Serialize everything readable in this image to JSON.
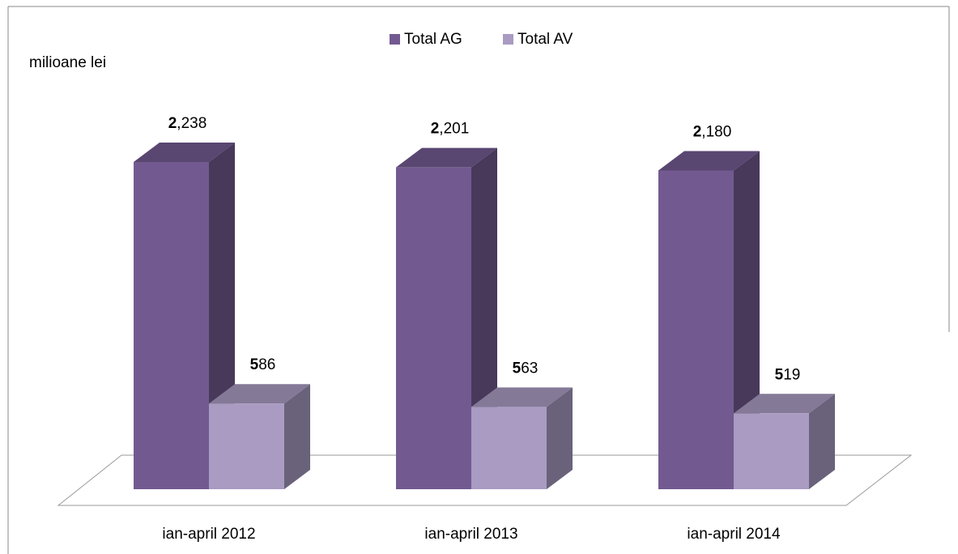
{
  "chart_data": {
    "type": "bar3d",
    "y_label": "milioane lei",
    "categories": [
      "ian-april 2012",
      "ian-april 2013",
      "ian-april 2014"
    ],
    "series": [
      {
        "name": "Total AG",
        "color": "#725a91",
        "values": [
          2238,
          2201,
          2180
        ],
        "value_labels": [
          "2,238",
          "2,201",
          "2,180"
        ]
      },
      {
        "name": "Total AV",
        "color": "#a99bc1",
        "values": [
          586,
          563,
          519
        ]
      }
    ],
    "legend": "top"
  }
}
